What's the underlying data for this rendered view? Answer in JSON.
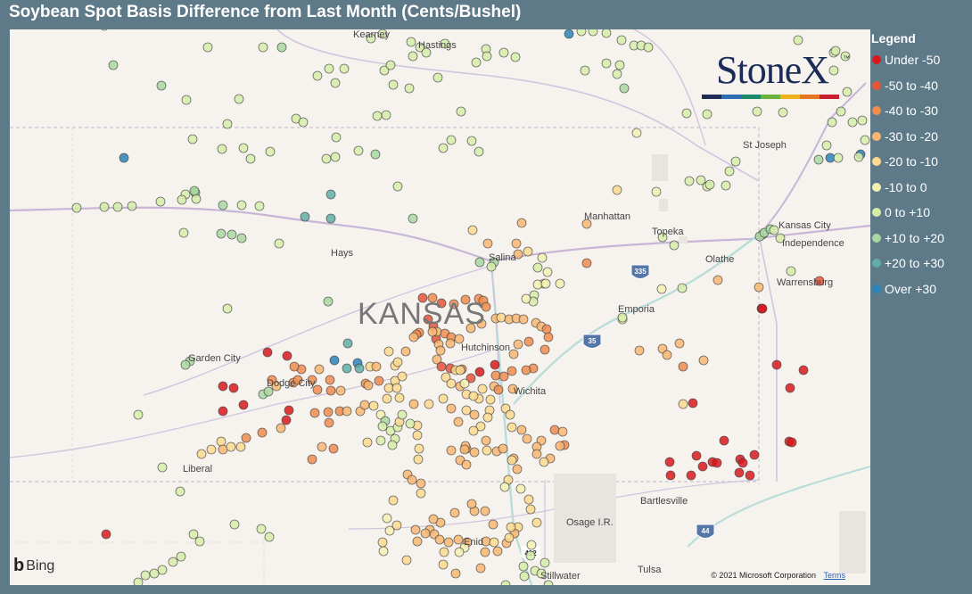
{
  "title": "Soybean Spot Basis Difference from Last Month (Cents/Bushel)",
  "logo": {
    "text": "StoneX",
    "tm": "™"
  },
  "legend": {
    "title": "Legend",
    "items": [
      {
        "label": "Under -50",
        "color": "#d7191c"
      },
      {
        "label": "-50 to -40",
        "color": "#e4553a"
      },
      {
        "label": "-40 to -30",
        "color": "#f08c4e"
      },
      {
        "label": "-30 to -20",
        "color": "#f8b672"
      },
      {
        "label": "-20 to -10",
        "color": "#fcd98e"
      },
      {
        "label": "-10 to 0",
        "color": "#f3f0b3"
      },
      {
        "label": "0 to +10",
        "color": "#d6eca9"
      },
      {
        "label": "+10 to +20",
        "color": "#a8d7a0"
      },
      {
        "label": "+20 to +30",
        "color": "#62aea6"
      },
      {
        "label": "Over +30",
        "color": "#2b83ba"
      }
    ]
  },
  "map": {
    "state_label": "KANSAS",
    "cities": [
      "Kearney",
      "Hastings",
      "St Joseph",
      "Manhattan",
      "Kansas City",
      "Independence",
      "Topeka",
      "Olathe",
      "Hays",
      "Salina",
      "Warrensburg",
      "Emporia",
      "Hutchinson",
      "Garden City",
      "Dodge City",
      "Wichita",
      "Liberal",
      "Bartlesville",
      "Osage I.R.",
      "Enid",
      "Stillwater",
      "Tulsa"
    ],
    "highways": [
      "335",
      "35",
      "44",
      "412"
    ],
    "attribution": "Bing",
    "copyright": "© 2021 Microsoft Corporation",
    "terms": "Terms"
  }
}
